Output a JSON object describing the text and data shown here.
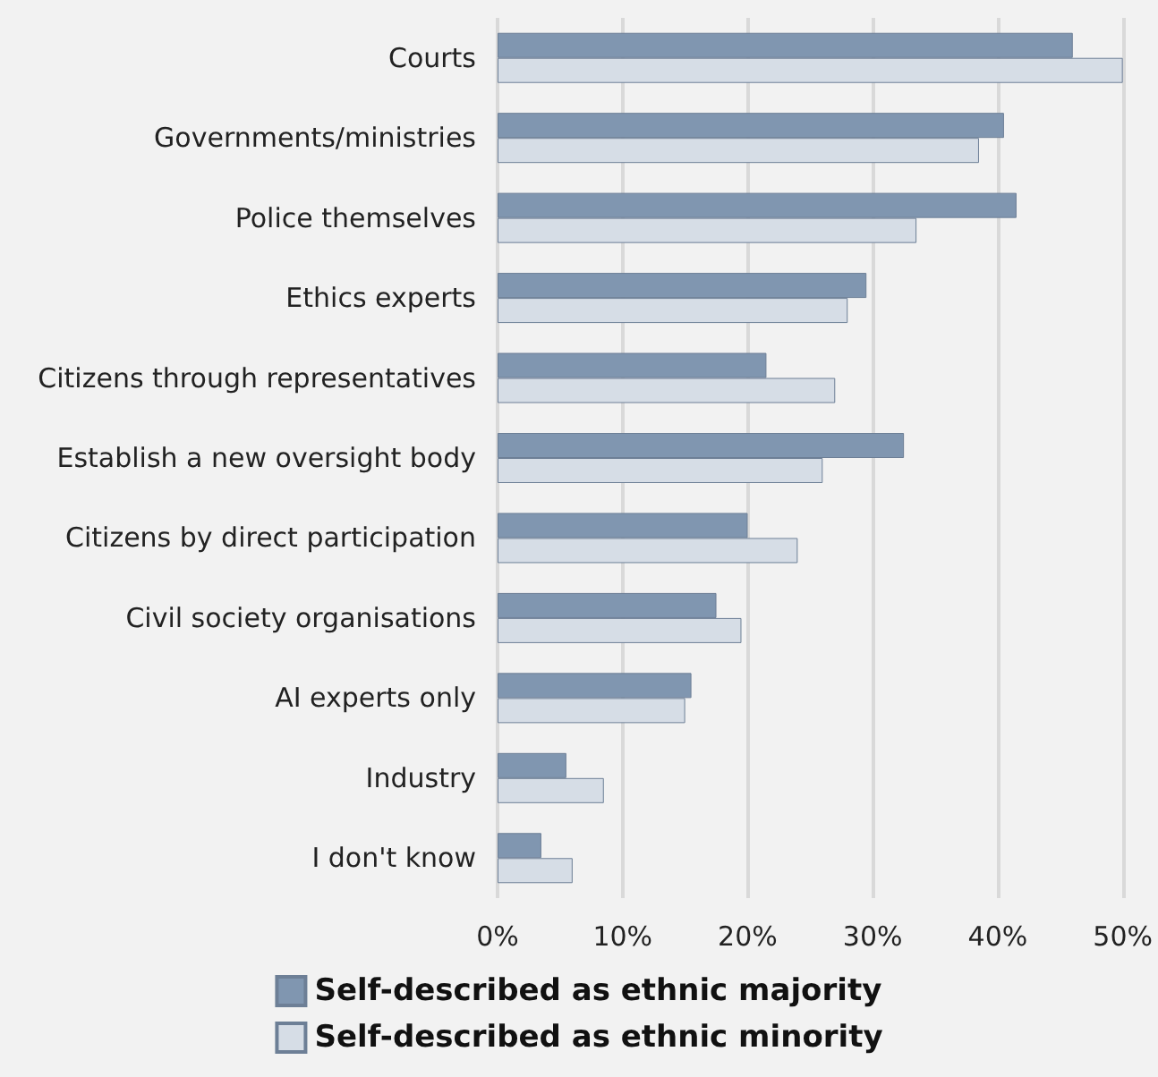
{
  "chart_data": {
    "type": "bar",
    "orientation": "horizontal",
    "categories": [
      "Courts",
      "Governments/ministries",
      "Police themselves",
      "Ethics experts",
      "Citizens through representatives",
      "Establish a new oversight body",
      "Citizens by direct participation",
      "Civil society organisations",
      "AI experts only",
      "Industry",
      "I don't know"
    ],
    "series": [
      {
        "name": "Self-described as ethnic majority",
        "color": "#8096b0",
        "values": [
          46,
          40.5,
          41.5,
          29.5,
          21.5,
          32.5,
          20,
          17.5,
          15.5,
          5.5,
          3.5
        ]
      },
      {
        "name": "Self-described as ethnic minority",
        "color": "#d6dde6",
        "values": [
          50,
          38.5,
          33.5,
          28,
          27,
          26,
          24,
          19.5,
          15,
          8.5,
          6
        ]
      }
    ],
    "xlim": [
      0,
      50
    ],
    "xticks": [
      {
        "value": 0,
        "label": "0%"
      },
      {
        "value": 10,
        "label": "10%"
      },
      {
        "value": 20,
        "label": "20%"
      },
      {
        "value": 30,
        "label": "30%"
      },
      {
        "value": 40,
        "label": "40%"
      },
      {
        "value": 50,
        "label": "50%"
      }
    ],
    "grid": "x",
    "legend": "bottom"
  }
}
